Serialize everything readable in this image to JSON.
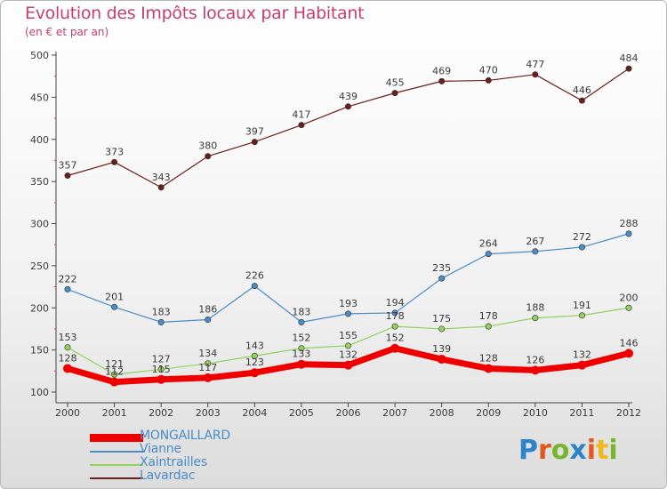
{
  "header": {
    "title": "Evolution des Impôts locaux par Habitant",
    "subtitle": "(en € et par an)"
  },
  "logo": {
    "text": "Proxiti",
    "letter_colors": [
      "#2a84c7",
      "#e0591e",
      "#77b52c",
      "#2a84c7",
      "#e0591e",
      "#f0b818",
      "#77b52c"
    ]
  },
  "chart_data": {
    "type": "line",
    "title": "Evolution des Impôts locaux par Habitant",
    "subtitle": "(en € et par an)",
    "xlabel": "",
    "ylabel": "",
    "x": [
      "2000",
      "2001",
      "2002",
      "2003",
      "2004",
      "2005",
      "2006",
      "2007",
      "2008",
      "2009",
      "2010",
      "2011",
      "2012"
    ],
    "ylim": [
      100,
      500
    ],
    "yticks": [
      100,
      150,
      200,
      250,
      300,
      350,
      400,
      450,
      500
    ],
    "grid": false,
    "legend_position": "bottom-left",
    "series": [
      {
        "name": "MONGAILLARD",
        "color": "#ee0000",
        "values": [
          128,
          112,
          115,
          117,
          123,
          133,
          132,
          152,
          139,
          128,
          126,
          132,
          146
        ],
        "labels": [
          "128",
          "112",
          "115",
          "117",
          "123",
          "133",
          "132",
          "152",
          "139",
          "128",
          "126",
          "132",
          "146"
        ]
      },
      {
        "name": "Vianne",
        "color": "#4a8cc6",
        "values": [
          222,
          201,
          183,
          186,
          226,
          183,
          193,
          194,
          235,
          264,
          267,
          272,
          288
        ],
        "labels": [
          "222",
          "201",
          "183",
          "186",
          "226",
          "183",
          "193",
          "194",
          "235",
          "264",
          "267",
          "272",
          "288"
        ]
      },
      {
        "name": "Xaintrailles",
        "color": "#92d15c",
        "values": [
          153,
          121,
          127,
          134,
          143,
          152,
          155,
          178,
          175,
          178,
          188,
          191,
          200
        ],
        "labels": [
          "153",
          "121",
          "127",
          "134",
          "143",
          "152",
          "155",
          "178",
          "175",
          "178",
          "188",
          "191",
          "200"
        ]
      },
      {
        "name": "Lavardac",
        "color": "#6b1e1e",
        "values": [
          357,
          373,
          343,
          380,
          397,
          417,
          439,
          455,
          469,
          470,
          477,
          446,
          484
        ],
        "labels": [
          "357",
          "373",
          "343",
          "380",
          "397",
          "417",
          "439",
          "455",
          "469",
          "470",
          "477",
          "446",
          "484"
        ]
      }
    ]
  }
}
